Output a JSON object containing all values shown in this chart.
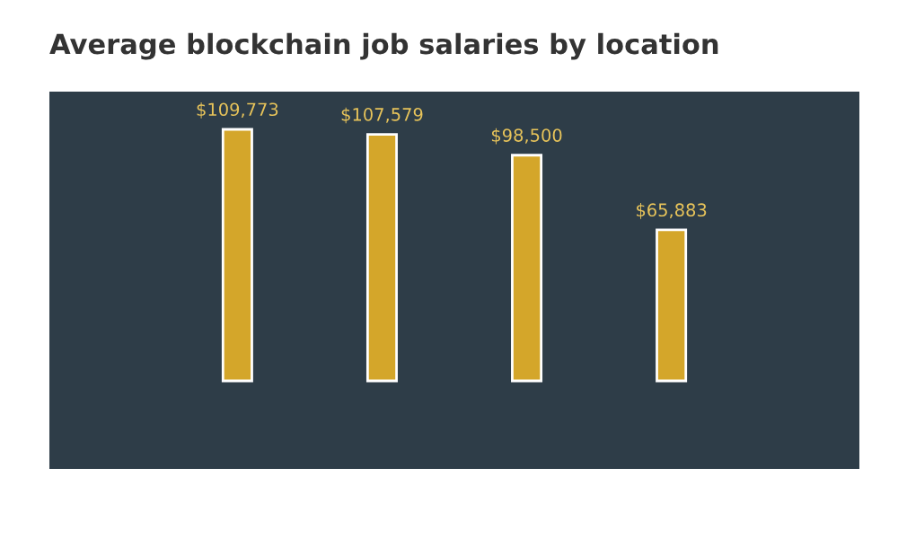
{
  "chart_data": {
    "type": "bar",
    "title": "Average blockchain job salaries by location",
    "categories": [
      null,
      null,
      null,
      null
    ],
    "values": [
      109773,
      107579,
      98500,
      65883
    ],
    "value_labels": [
      "$109,773",
      "$107,579",
      "$98,500",
      "$65,883"
    ],
    "color": "#d4a62a",
    "grid": false
  }
}
